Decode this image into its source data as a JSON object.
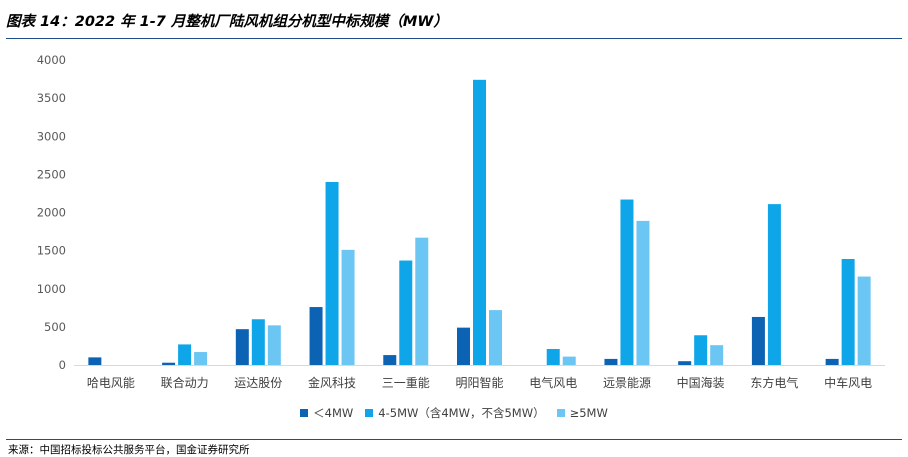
{
  "title": "图表 14：2022 年 1-7 月整机厂陆风机组分机型中标规模（MW）",
  "source": "来源：中国招标投标公共服务平台，国金证券研究所",
  "chart_data": {
    "type": "bar",
    "title": "",
    "xlabel": "",
    "ylabel": "",
    "ylim": [
      0,
      4000
    ],
    "yticks": [
      0,
      500,
      1000,
      1500,
      2000,
      2500,
      3000,
      3500,
      4000
    ],
    "grid": false,
    "legend_position": "bottom",
    "categories": [
      "哈电风能",
      "联合动力",
      "运达股份",
      "金风科技",
      "三一重能",
      "明阳智能",
      "电气风电",
      "远景能源",
      "中国海装",
      "东方电气",
      "中车风电"
    ],
    "series": [
      {
        "name": "＜4MW",
        "color": "#0d63b3",
        "values": [
          100,
          30,
          470,
          760,
          130,
          490,
          0,
          80,
          50,
          630,
          80
        ]
      },
      {
        "name": "4-5MW（含4MW，不含5MW）",
        "color": "#0ea5e9",
        "values": [
          0,
          270,
          600,
          2400,
          1370,
          3740,
          210,
          2170,
          390,
          2110,
          1390
        ]
      },
      {
        "name": "≥5MW",
        "color": "#6cc6f4",
        "values": [
          0,
          170,
          520,
          1510,
          1670,
          720,
          110,
          1890,
          260,
          0,
          1160
        ]
      }
    ]
  }
}
